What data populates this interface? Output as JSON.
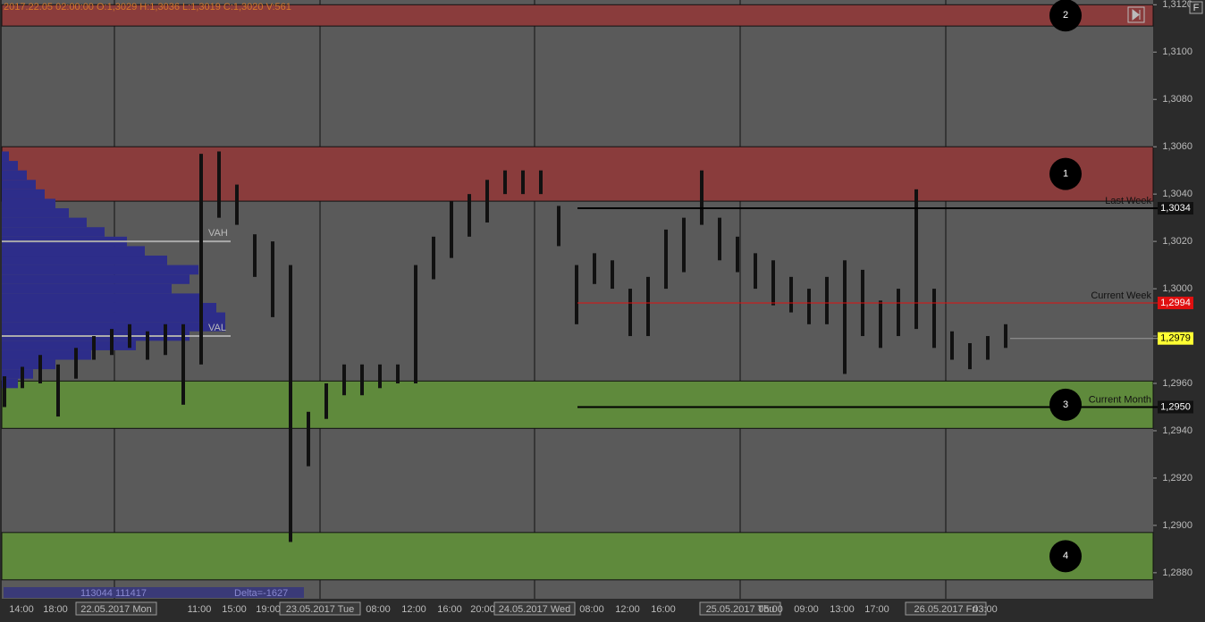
{
  "chart_data": {
    "type": "footprint",
    "header": "2017.22.05 02:00:00   O:1,3029   H:1,3036   L:1,3019   C:1,3020   V:561",
    "ylim": [
      1.2869,
      1.3122
    ],
    "yticks": [
      {
        "value": 1.312,
        "label": "1,3120"
      },
      {
        "value": 1.31,
        "label": "1,3100"
      },
      {
        "value": 1.308,
        "label": "1,3080"
      },
      {
        "value": 1.306,
        "label": "1,3060"
      },
      {
        "value": 1.304,
        "label": "1,3040"
      },
      {
        "value": 1.302,
        "label": "1,3020"
      },
      {
        "value": 1.3,
        "label": "1,3000"
      },
      {
        "value": 1.298,
        "label": "1,2980"
      },
      {
        "value": 1.296,
        "label": "1,2960"
      },
      {
        "value": 1.294,
        "label": "1,2940"
      },
      {
        "value": 1.292,
        "label": "1,2920"
      },
      {
        "value": 1.29,
        "label": "1,2900"
      },
      {
        "value": 1.288,
        "label": "1,2880"
      }
    ],
    "x_labels": [
      "14:00",
      "18:00",
      "22.05.2017 Mon",
      "11:00",
      "15:00",
      "19:00",
      "23.05.2017 Tue",
      "08:00",
      "12:00",
      "16:00",
      "20:00",
      "24.05.2017 Wed",
      "08:00",
      "12:00",
      "16:00",
      "25.05.2017 Thu",
      "05:00",
      "09:00",
      "13:00",
      "17:00",
      "26.05.2017 Fri",
      "03:00"
    ],
    "zones": [
      {
        "label": "2",
        "low": 1.3111,
        "high": 1.312,
        "color": "#8a3c3c"
      },
      {
        "label": "1",
        "low": 1.3037,
        "high": 1.306,
        "color": "#8a3c3c"
      },
      {
        "label": "3",
        "low": 1.2941,
        "high": 1.2961,
        "color": "#5f8a3c"
      },
      {
        "label": "4",
        "low": 1.2877,
        "high": 1.2897,
        "color": "#5f8a3c"
      }
    ],
    "levels": [
      {
        "name": "Last Week",
        "value": 1.3034,
        "label": "1,3034",
        "color": "#000000"
      },
      {
        "name": "Current Week",
        "value": 1.2994,
        "label": "1,2994",
        "color": "#e01010"
      },
      {
        "name": "Current Month",
        "value": 1.295,
        "label": "1,2950",
        "color": "#000000"
      }
    ],
    "last_price": {
      "value": 1.2979,
      "label": "1,2979",
      "color": "#ffff33"
    },
    "value_area": {
      "vah": 1.302,
      "val": 1.298,
      "vah_label": "VAH",
      "val_label": "VAL"
    },
    "profile": {
      "color": "#2d2d8a",
      "prices": [
        1.296,
        1.2964,
        1.2968,
        1.2972,
        1.2976,
        1.298,
        1.2984,
        1.2988,
        1.2992,
        1.2996,
        1.3,
        1.3004,
        1.3008,
        1.3012,
        1.3016,
        1.302,
        1.3024,
        1.3028,
        1.3032,
        1.3036,
        1.304,
        1.3044,
        1.3048,
        1.3052,
        1.3056
      ],
      "volumes": [
        18,
        35,
        60,
        100,
        150,
        210,
        250,
        250,
        240,
        225,
        190,
        210,
        220,
        185,
        160,
        140,
        115,
        95,
        75,
        60,
        48,
        38,
        28,
        18,
        8
      ]
    },
    "ranges": {
      "color": "#111111",
      "lows": [
        1.295,
        1.2958,
        1.296,
        1.2946,
        1.2962,
        1.297,
        1.2972,
        1.2975,
        1.297,
        1.2972,
        1.2951,
        1.2968,
        1.303,
        1.3027,
        1.3005,
        1.2988,
        1.2893,
        1.2925,
        1.2945,
        1.2955,
        1.2955,
        1.2958,
        1.296,
        1.296,
        1.3004,
        1.3013,
        1.3022,
        1.3028,
        1.304,
        1.304,
        1.304,
        1.3018,
        1.2985,
        1.3002,
        1.3,
        1.298,
        1.298,
        1.3,
        1.3007,
        1.3027,
        1.3012,
        1.3007,
        1.3,
        1.2993,
        1.299,
        1.2985,
        1.2985,
        1.2964,
        1.298,
        1.2975,
        1.298,
        1.2983,
        1.2975,
        1.297,
        1.2966,
        1.297,
        1.2975
      ],
      "highs": [
        1.2963,
        1.2967,
        1.2972,
        1.2968,
        1.2975,
        1.298,
        1.2983,
        1.2985,
        1.2982,
        1.2985,
        1.2985,
        1.3057,
        1.3058,
        1.3044,
        1.3023,
        1.302,
        1.301,
        1.2948,
        1.296,
        1.2968,
        1.2968,
        1.2968,
        1.2968,
        1.301,
        1.3022,
        1.3037,
        1.304,
        1.3046,
        1.305,
        1.305,
        1.305,
        1.3035,
        1.301,
        1.3015,
        1.3012,
        1.3,
        1.3005,
        1.3025,
        1.303,
        1.305,
        1.303,
        1.3022,
        1.3015,
        1.3012,
        1.3005,
        1.3,
        1.3005,
        1.3012,
        1.3008,
        1.2995,
        1.3,
        1.3042,
        1.3,
        1.2982,
        1.2977,
        1.298,
        1.2985
      ]
    },
    "footer": {
      "volumes": "113044 111417",
      "delta": "Delta=-1627"
    }
  }
}
